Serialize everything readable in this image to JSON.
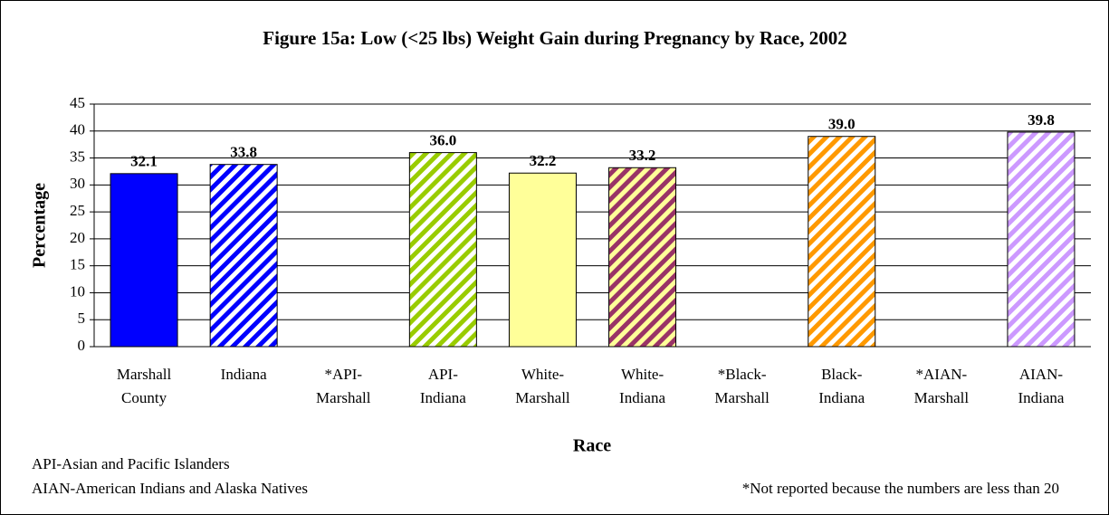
{
  "chart_data": {
    "type": "bar",
    "title": "Figure 15a:  Low (<25 lbs) Weight Gain during Pregnancy by Race, 2002",
    "x_label": "Race",
    "y_label": "Percentage",
    "categories": [
      [
        "Marshall",
        "County"
      ],
      [
        "Indiana"
      ],
      [
        "*API-",
        "Marshall"
      ],
      [
        "API-",
        "Indiana"
      ],
      [
        "White-",
        "Marshall"
      ],
      [
        "White-",
        "Indiana"
      ],
      [
        "*Black-",
        "Marshall"
      ],
      [
        "Black-",
        "Indiana"
      ],
      [
        "*AIAN-",
        "Marshall"
      ],
      [
        "AIAN-",
        "Indiana"
      ]
    ],
    "values": [
      32.1,
      33.8,
      null,
      36.0,
      32.2,
      33.2,
      null,
      39.0,
      null,
      39.8
    ],
    "value_labels": [
      "32.1",
      "33.8",
      null,
      "36.0",
      "32.2",
      "33.2",
      null,
      "39.0",
      null,
      "39.8"
    ],
    "colors": [
      "#0000ff",
      "#0000ff",
      null,
      "#99cc00",
      "#ffff99",
      "#993366",
      null,
      "#ff9900",
      null,
      "#cc99ff"
    ],
    "stripe_backgrounds": [
      null,
      "#ffffff",
      null,
      "#ffffff",
      null,
      "#ffff99",
      null,
      "#ffffff",
      null,
      "#ffffff"
    ],
    "ylim": [
      0,
      45
    ],
    "yticks": [
      0,
      5,
      10,
      15,
      20,
      25,
      30,
      35,
      40,
      45
    ],
    "grid": true,
    "notes": [
      "API-Asian and Pacific Islanders",
      "AIAN-American Indians and Alaska Natives",
      "*Not reported because the numbers are less than 20"
    ]
  }
}
